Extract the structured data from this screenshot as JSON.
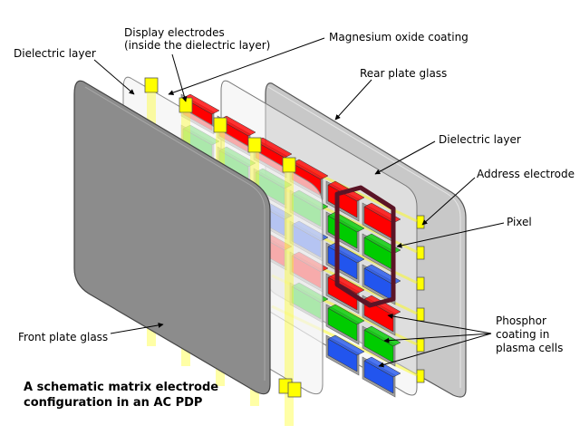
{
  "labels": {
    "dielectric_front": "Dielectric layer",
    "display_electrodes_line1": "Display electrodes",
    "display_electrodes_line2": "(inside the dielectric layer)",
    "magnesium_oxide": "Magnesium oxide coating",
    "rear_plate": "Rear plate glass",
    "dielectric_rear": "Dielectric layer",
    "address_electrode": "Address electrode",
    "pixel": "Pixel",
    "phosphor_line1": "Phosphor",
    "phosphor_line2": "coating in",
    "phosphor_line3": "plasma cells",
    "front_plate": "Front plate glass"
  },
  "caption": {
    "line1": "A schematic matrix electrode",
    "line2": "configuration in an AC PDP"
  },
  "colors": {
    "red": "#ff0000",
    "green": "#00cc00",
    "blue": "#2255ee",
    "electrode_yellow": "#ffff00",
    "pixel_outline": "#5a1426",
    "front_glass": "#8a8a8a",
    "rear_glass": "#c8c8c8",
    "rib_gray": "#a0a0a0"
  }
}
